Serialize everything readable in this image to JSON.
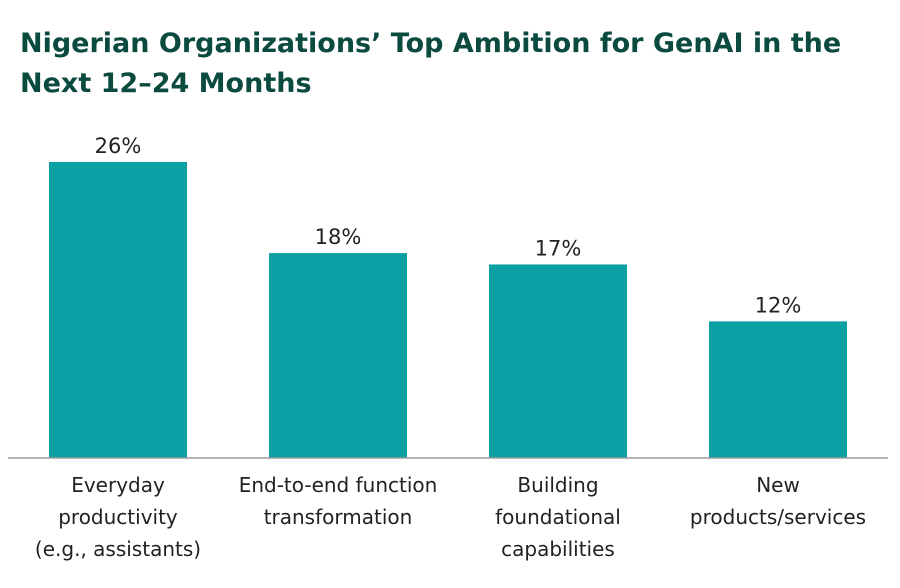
{
  "chart_data": {
    "type": "bar",
    "title": "Nigerian Organizations’ Top Ambition for GenAI in the Next 12–24 Months",
    "categories": [
      [
        "Everyday",
        "productivity",
        "(e.g., assistants)"
      ],
      [
        "End-to-end function",
        "transformation"
      ],
      [
        "Building",
        "foundational",
        "capabilities"
      ],
      [
        "New",
        "products/services"
      ]
    ],
    "values": [
      26,
      18,
      17,
      12
    ],
    "value_labels": [
      "26%",
      "18%",
      "17%",
      "12%"
    ],
    "ylim": [
      0,
      26
    ],
    "grid": false,
    "legend": "none",
    "bar_color": "#0aa0a4",
    "axis_color": "#9a9a9a",
    "title_color": "#0b4a3f"
  }
}
